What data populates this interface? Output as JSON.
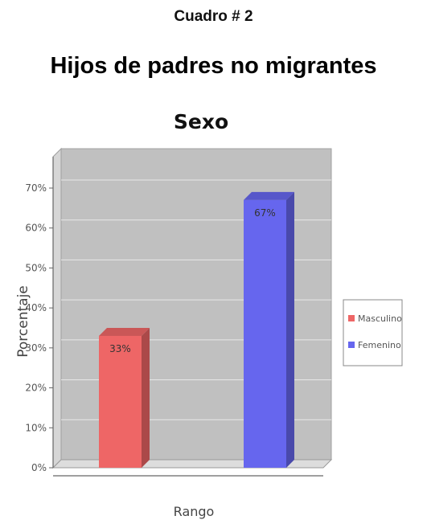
{
  "document": {
    "cuadro_label": "Cuadro # 2",
    "heading": "Hijos de padres no migrantes"
  },
  "chart_data": {
    "type": "bar",
    "title": "Sexo",
    "xlabel": "Rango",
    "ylabel": "Porcentaje",
    "ylim": [
      0,
      70
    ],
    "yticks": [
      "0%",
      "10%",
      "20%",
      "30%",
      "40%",
      "50%",
      "60%",
      "70%"
    ],
    "grid": true,
    "legend_position": "right",
    "series": [
      {
        "name": "Masculino",
        "value": 33,
        "label": "33%",
        "color": "#ee6666"
      },
      {
        "name": "Femenino",
        "value": 67,
        "label": "67%",
        "color": "#6666ee"
      }
    ]
  }
}
